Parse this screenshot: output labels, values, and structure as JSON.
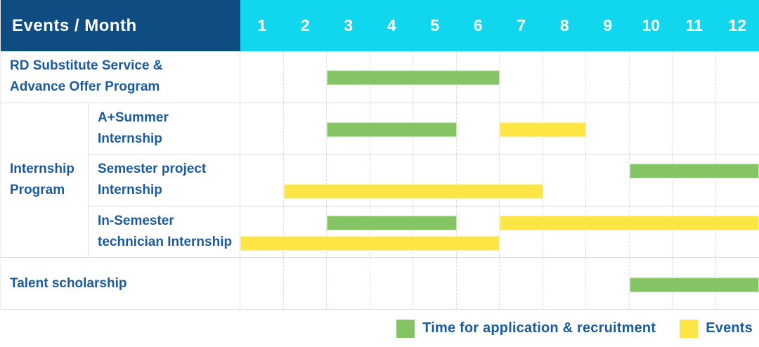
{
  "colors": {
    "header_bg": "#0e4c81",
    "months_bg": "#10d7ee",
    "label_text": "#1b5a9d",
    "green": "#85c464",
    "yellow": "#fde546",
    "grid_line": "#dcdcdc"
  },
  "table": {
    "header_label": "Events / Month",
    "months": [
      "1",
      "2",
      "3",
      "4",
      "5",
      "6",
      "7",
      "8",
      "9",
      "10",
      "11",
      "12"
    ],
    "rows": [
      {
        "label_lines": [
          "RD Substitute Service &",
          "Advance Offer Program"
        ],
        "full_width_label": true,
        "bars": [
          {
            "color": "green",
            "start": 3,
            "end": 6,
            "level": "center"
          }
        ]
      },
      {
        "group_label_lines": [
          "Internship",
          "Program"
        ],
        "group_span": 3,
        "label_lines": [
          "A+Summer",
          "Internship"
        ],
        "bars": [
          {
            "color": "green",
            "start": 3,
            "end": 5,
            "level": "center"
          },
          {
            "color": "yellow",
            "start": 7,
            "end": 8,
            "level": "center"
          }
        ]
      },
      {
        "label_lines": [
          "Semester project",
          "Internship"
        ],
        "bars": [
          {
            "color": "green",
            "start": 10,
            "end": 12,
            "level": "upper"
          },
          {
            "color": "yellow",
            "start": 2,
            "end": 7,
            "level": "lower"
          }
        ]
      },
      {
        "label_lines": [
          "In-Semester",
          "technician Internship"
        ],
        "bars": [
          {
            "color": "green",
            "start": 3,
            "end": 5,
            "level": "upper"
          },
          {
            "color": "yellow",
            "start": 7,
            "end": 12,
            "level": "upper"
          },
          {
            "color": "yellow",
            "start": 1,
            "end": 6,
            "level": "lower"
          }
        ]
      },
      {
        "label_lines": [
          "Talent scholarship"
        ],
        "full_width_label": true,
        "bars": [
          {
            "color": "green",
            "start": 10,
            "end": 12,
            "level": "center"
          }
        ]
      }
    ]
  },
  "legend": {
    "items": [
      {
        "color": "green",
        "label": "Time for application & recruitment"
      },
      {
        "color": "yellow",
        "label": "Events"
      }
    ]
  },
  "chart_data": {
    "type": "bar",
    "subtype": "gantt",
    "title": "Events / Month",
    "x_axis": {
      "label": "Month",
      "ticks": [
        1,
        2,
        3,
        4,
        5,
        6,
        7,
        8,
        9,
        10,
        11,
        12
      ],
      "range": [
        1,
        12
      ]
    },
    "grid": true,
    "legend_position": "bottom-right",
    "legend": [
      {
        "name": "Time for application & recruitment",
        "color": "#85c464"
      },
      {
        "name": "Events",
        "color": "#fde546"
      }
    ],
    "rows": [
      {
        "event": "RD Substitute Service & Advance Offer Program",
        "group": null,
        "spans": [
          {
            "kind": "application_recruitment",
            "months": [
              3,
              6
            ]
          }
        ]
      },
      {
        "event": "A+Summer Internship",
        "group": "Internship Program",
        "spans": [
          {
            "kind": "application_recruitment",
            "months": [
              3,
              5
            ]
          },
          {
            "kind": "event",
            "months": [
              7,
              8
            ]
          }
        ]
      },
      {
        "event": "Semester project Internship",
        "group": "Internship Program",
        "spans": [
          {
            "kind": "application_recruitment",
            "months": [
              10,
              12
            ]
          },
          {
            "kind": "event",
            "months": [
              2,
              7
            ]
          }
        ]
      },
      {
        "event": "In-Semester technician Internship",
        "group": "Internship Program",
        "spans": [
          {
            "kind": "application_recruitment",
            "months": [
              3,
              5
            ]
          },
          {
            "kind": "event",
            "months": [
              1,
              6
            ]
          },
          {
            "kind": "event",
            "months": [
              7,
              12
            ]
          }
        ]
      },
      {
        "event": "Talent scholarship",
        "group": null,
        "spans": [
          {
            "kind": "application_recruitment",
            "months": [
              10,
              12
            ]
          }
        ]
      }
    ]
  }
}
